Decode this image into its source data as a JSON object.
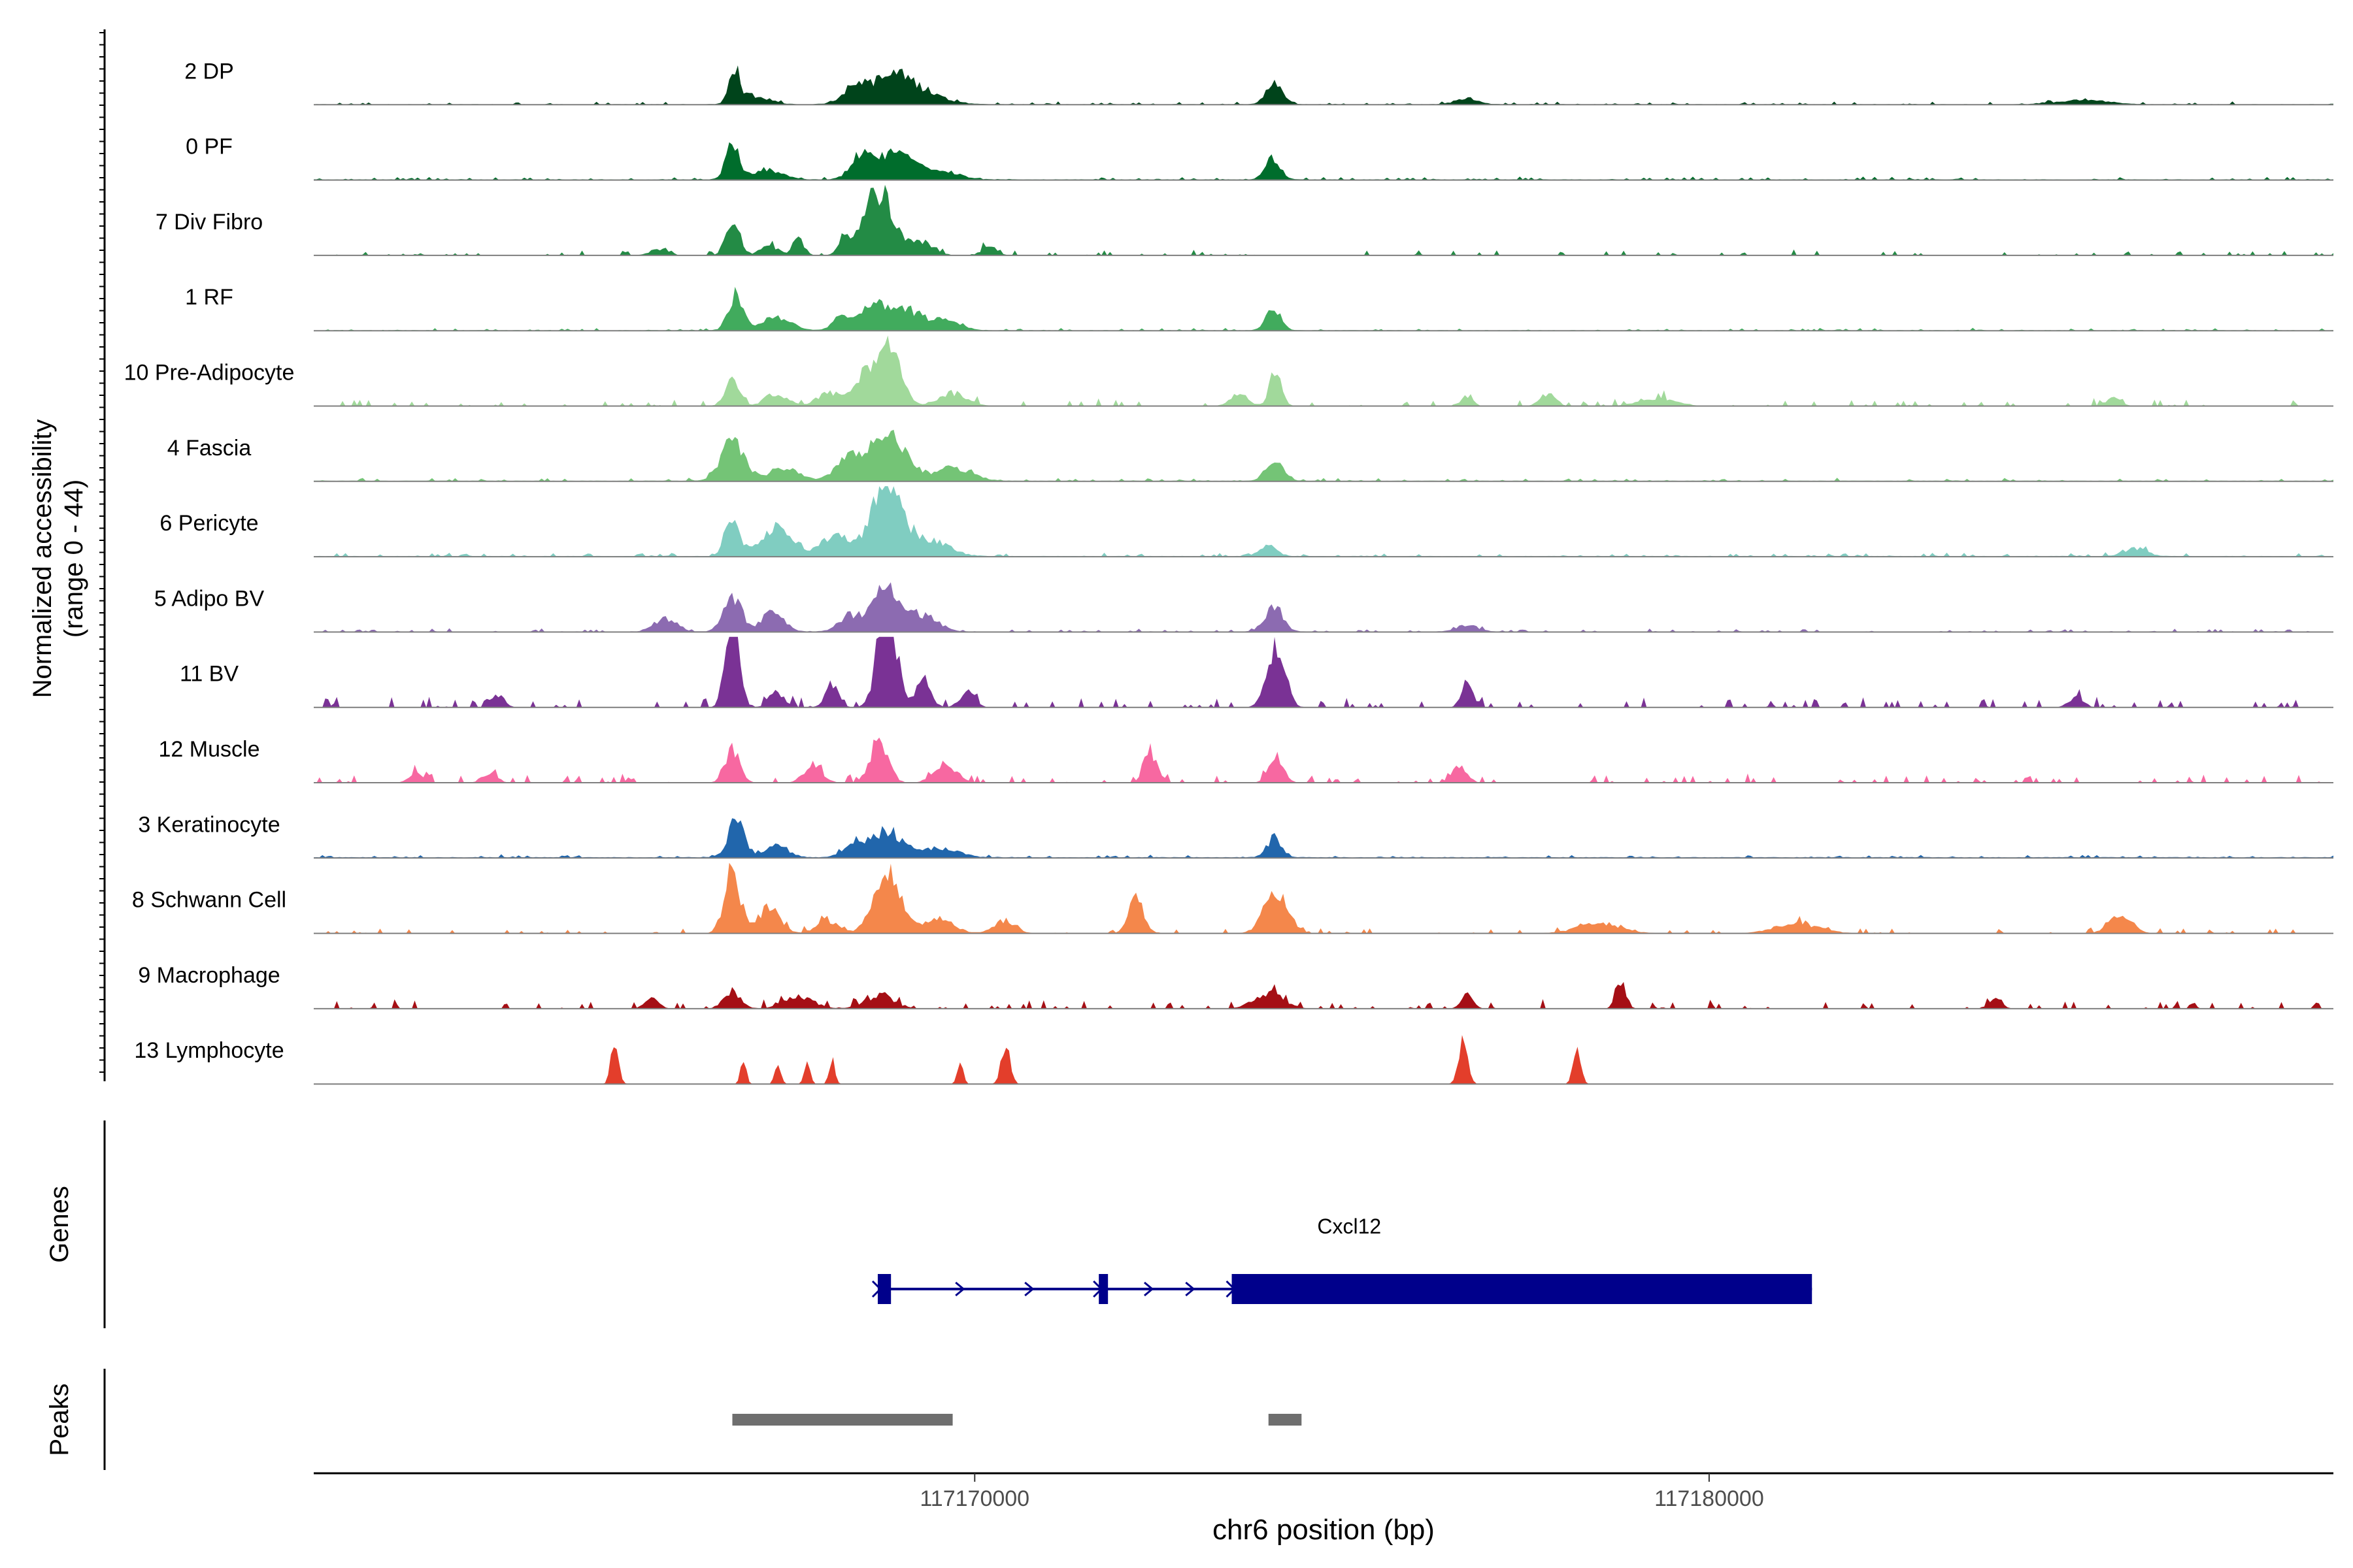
{
  "chart_data": {
    "type": "area",
    "chromosome": "chr6",
    "xlim": [
      117161000,
      117188500
    ],
    "x_ticks": [
      117170000,
      117180000
    ],
    "x_tick_labels": [
      "117170000",
      "117180000"
    ],
    "xlabel": "chr6 position (bp)",
    "ylabel_line1": "Normalized accessibility",
    "ylabel_line2": "(range 0 - 44)",
    "ylim": [
      0,
      44
    ],
    "genes_label": "Genes",
    "peaks_label": "Peaks",
    "gene": {
      "name": "Cxcl12",
      "color": "#00008b",
      "strand": "+",
      "start": 117168680,
      "end": 117181400,
      "exons": [
        [
          117168680,
          117168860
        ],
        [
          117171690,
          117171810
        ],
        [
          117173500,
          117181400
        ]
      ]
    },
    "peaks": {
      "color": "#6e6e6e",
      "regions": [
        [
          117166700,
          117169700
        ],
        [
          117174000,
          117174450
        ]
      ]
    },
    "series": [
      {
        "name": "2 DP",
        "color": "#00441b",
        "noise": 1.5,
        "baseline": 0.3,
        "peaks": [
          [
            117166730,
            22,
            70
          ],
          [
            117167000,
            5,
            200
          ],
          [
            117168400,
            12,
            180
          ],
          [
            117168900,
            16,
            250
          ],
          [
            117169300,
            6,
            300
          ],
          [
            117174080,
            14,
            110
          ],
          [
            117176700,
            4,
            150
          ],
          [
            117185100,
            3,
            300
          ]
        ]
      },
      {
        "name": "0 PF",
        "color": "#006d2c",
        "noise": 1.5,
        "baseline": 0.4,
        "peaks": [
          [
            117166700,
            22,
            90
          ],
          [
            117167200,
            6,
            200
          ],
          [
            117168450,
            14,
            140
          ],
          [
            117168900,
            16,
            250
          ],
          [
            117169500,
            6,
            250
          ],
          [
            117174060,
            14,
            100
          ]
        ]
      },
      {
        "name": "7 Div Fibro",
        "color": "#238b45",
        "noise": 3.0,
        "baseline": 0.0,
        "peaks": [
          [
            117166700,
            22,
            90
          ],
          [
            117167200,
            6,
            120
          ],
          [
            117167600,
            10,
            80
          ],
          [
            117168250,
            10,
            90
          ],
          [
            117168700,
            40,
            200
          ],
          [
            117169300,
            8,
            150
          ],
          [
            117170200,
            6,
            100
          ],
          [
            117165700,
            4,
            120
          ]
        ]
      },
      {
        "name": "1 RF",
        "color": "#41ab5d",
        "noise": 1.2,
        "baseline": 0.3,
        "peaks": [
          [
            117166750,
            22,
            100
          ],
          [
            117167300,
            8,
            200
          ],
          [
            117168200,
            10,
            120
          ],
          [
            117168600,
            12,
            150
          ],
          [
            117169000,
            14,
            250
          ],
          [
            117169600,
            6,
            200
          ],
          [
            117174060,
            14,
            100
          ]
        ]
      },
      {
        "name": "10 Pre-Adipocyte",
        "color": "#a1d99b",
        "noise": 4.0,
        "baseline": 0.0,
        "peaks": [
          [
            117166700,
            16,
            100
          ],
          [
            117167300,
            8,
            150
          ],
          [
            117168000,
            8,
            150
          ],
          [
            117168500,
            18,
            180
          ],
          [
            117168850,
            42,
            150
          ],
          [
            117169700,
            8,
            200
          ],
          [
            117174100,
            24,
            80
          ],
          [
            117173600,
            8,
            120
          ],
          [
            117176700,
            6,
            80
          ],
          [
            117177800,
            8,
            100
          ],
          [
            117179300,
            5,
            250
          ],
          [
            117185500,
            5,
            100
          ]
        ]
      },
      {
        "name": "4 Fascia",
        "color": "#74c476",
        "noise": 1.5,
        "baseline": 0.4,
        "peaks": [
          [
            117166700,
            24,
            160
          ],
          [
            117167400,
            8,
            200
          ],
          [
            117168250,
            12,
            160
          ],
          [
            117168800,
            28,
            250
          ],
          [
            117169700,
            8,
            250
          ],
          [
            117174080,
            12,
            120
          ]
        ]
      },
      {
        "name": "6 Pericyte",
        "color": "#80cdc1",
        "noise": 2.0,
        "baseline": 0.4,
        "peaks": [
          [
            117166700,
            24,
            100
          ],
          [
            117167300,
            18,
            200
          ],
          [
            117168100,
            12,
            200
          ],
          [
            117168800,
            50,
            200
          ],
          [
            117169400,
            10,
            250
          ],
          [
            117174000,
            6,
            120
          ],
          [
            117185800,
            5,
            150
          ]
        ]
      },
      {
        "name": "5 Adipo BV",
        "color": "#8c6bb1",
        "noise": 1.6,
        "baseline": 0.3,
        "peaks": [
          [
            117166700,
            22,
            120
          ],
          [
            117167250,
            12,
            150
          ],
          [
            117168300,
            10,
            150
          ],
          [
            117168800,
            28,
            180
          ],
          [
            117169300,
            10,
            200
          ],
          [
            117174070,
            16,
            120
          ],
          [
            117165800,
            8,
            150
          ],
          [
            117176700,
            4,
            150
          ]
        ]
      },
      {
        "name": "11 BV",
        "color": "#7a3295",
        "noise": 6.0,
        "baseline": 0.0,
        "peaks": [
          [
            117166700,
            60,
            90
          ],
          [
            117167300,
            10,
            100
          ],
          [
            117168050,
            14,
            90
          ],
          [
            117168800,
            72,
            120
          ],
          [
            117169300,
            18,
            100
          ],
          [
            117169900,
            10,
            100
          ],
          [
            117174100,
            40,
            120
          ],
          [
            117176700,
            20,
            70
          ],
          [
            117163500,
            8,
            90
          ],
          [
            117185000,
            6,
            100
          ]
        ]
      },
      {
        "name": "12 Muscle",
        "color": "#f768a1",
        "noise": 5.0,
        "baseline": 0.0,
        "peaks": [
          [
            117166700,
            20,
            100
          ],
          [
            117167800,
            12,
            120
          ],
          [
            117168700,
            28,
            120
          ],
          [
            117169600,
            12,
            150
          ],
          [
            117172400,
            16,
            100
          ],
          [
            117174100,
            16,
            100
          ],
          [
            117176600,
            10,
            100
          ],
          [
            117162400,
            6,
            100
          ],
          [
            117163400,
            6,
            100
          ]
        ]
      },
      {
        "name": "3 Keratinocyte",
        "color": "#2166ac",
        "noise": 1.4,
        "baseline": 0.5,
        "peaks": [
          [
            117166750,
            22,
            110
          ],
          [
            117167300,
            8,
            150
          ],
          [
            117168350,
            8,
            150
          ],
          [
            117168800,
            16,
            200
          ],
          [
            117169500,
            6,
            250
          ],
          [
            117174080,
            12,
            100
          ]
        ]
      },
      {
        "name": "8 Schwann Cell",
        "color": "#f4874b",
        "noise": 3.0,
        "baseline": 0.0,
        "peaks": [
          [
            117166700,
            38,
            110
          ],
          [
            117167200,
            16,
            150
          ],
          [
            117168000,
            8,
            150
          ],
          [
            117168800,
            42,
            170
          ],
          [
            117169500,
            10,
            200
          ],
          [
            117170400,
            8,
            150
          ],
          [
            117172200,
            22,
            100
          ],
          [
            117174100,
            26,
            160
          ],
          [
            117178500,
            6,
            300
          ],
          [
            117181200,
            6,
            300
          ],
          [
            117185600,
            12,
            150
          ]
        ]
      },
      {
        "name": "9 Macrophage",
        "color": "#a50f15",
        "noise": 5.0,
        "baseline": 0.0,
        "peaks": [
          [
            117166700,
            10,
            120
          ],
          [
            117167600,
            8,
            200
          ],
          [
            117168700,
            8,
            200
          ],
          [
            117174000,
            10,
            200
          ],
          [
            117176700,
            10,
            80
          ],
          [
            117178800,
            16,
            70
          ],
          [
            117183900,
            8,
            80
          ],
          [
            117165600,
            6,
            100
          ]
        ]
      },
      {
        "name": "13 Lymphocyte",
        "color": "#e33e2b",
        "noise": 0.0,
        "baseline": 0.0,
        "peaks": [
          [
            117165100,
            30,
            50
          ],
          [
            117166850,
            14,
            40
          ],
          [
            117167320,
            14,
            40
          ],
          [
            117167720,
            14,
            40
          ],
          [
            117168060,
            14,
            40
          ],
          [
            117169800,
            14,
            40
          ],
          [
            117170420,
            24,
            60
          ],
          [
            117176650,
            28,
            60
          ],
          [
            117178200,
            26,
            50
          ]
        ]
      }
    ]
  }
}
